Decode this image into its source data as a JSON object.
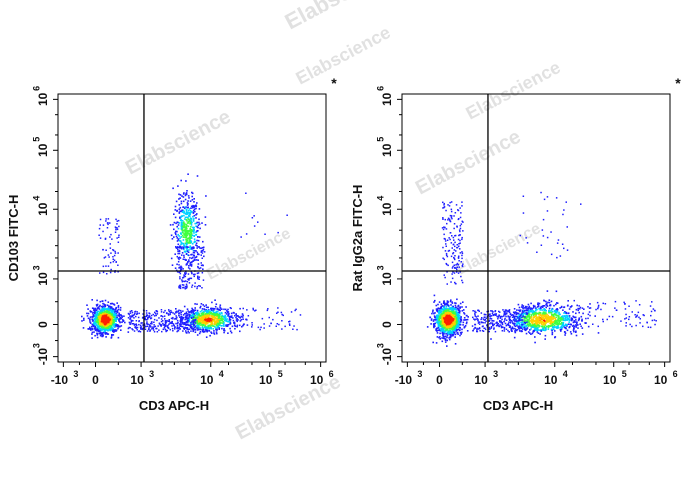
{
  "watermark": "Elabscience",
  "colors": {
    "axis": "#000000",
    "gate": "#000000",
    "density_low": "#1f1fff",
    "density_mid": "#00d0ff",
    "density_mid2": "#40ff40",
    "density_high": "#ffd000",
    "density_peak": "#ff2000"
  },
  "chart_data": [
    {
      "type": "scatter",
      "subtype": "flow-cytometry-density-dot-plot",
      "panel": "left",
      "marker": "*",
      "xlabel": "CD3 APC-H",
      "ylabel": "CD103 FITC-H",
      "xscale": "biexponential",
      "yscale": "biexponential",
      "xlim": [
        -1000,
        1000000
      ],
      "ylim": [
        -1000,
        1000000
      ],
      "x_ticks": [
        {
          "value": -1000,
          "base": "-10",
          "exp": "3"
        },
        {
          "value": 0,
          "base": "0",
          "exp": ""
        },
        {
          "value": 1000,
          "base": "10",
          "exp": "3"
        },
        {
          "value": 10000,
          "base": "10",
          "exp": "4"
        },
        {
          "value": 100000,
          "base": "10",
          "exp": "5"
        },
        {
          "value": 1000000,
          "base": "10",
          "exp": "6"
        }
      ],
      "y_ticks": [
        {
          "value": -1000,
          "base": "-10",
          "exp": "3"
        },
        {
          "value": 0,
          "base": "0",
          "exp": ""
        },
        {
          "value": 1000,
          "base": "10",
          "exp": "3"
        },
        {
          "value": 10000,
          "base": "10",
          "exp": "4"
        },
        {
          "value": 100000,
          "base": "10",
          "exp": "5"
        },
        {
          "value": 1000000,
          "base": "10",
          "exp": "6"
        }
      ],
      "gate_x": 1100,
      "gate_y": 1300,
      "populations": [
        {
          "name": "CD3- CD103-",
          "x": 200,
          "y": 120,
          "relative_density": 1.0
        },
        {
          "name": "CD3+ CD103-",
          "x": 9000,
          "y": 120,
          "relative_density": 0.75
        },
        {
          "name": "CD3+ CD103+",
          "x": 5000,
          "y": 6000,
          "relative_density": 0.3
        }
      ]
    },
    {
      "type": "scatter",
      "subtype": "flow-cytometry-density-dot-plot",
      "panel": "right",
      "marker": "*",
      "xlabel": "CD3 APC-H",
      "ylabel": "Rat IgG2a FITC-H",
      "xscale": "biexponential",
      "yscale": "biexponential",
      "xlim": [
        -1000,
        1000000
      ],
      "ylim": [
        -1000,
        1000000
      ],
      "x_ticks": [
        {
          "value": -1000,
          "base": "-10",
          "exp": "3"
        },
        {
          "value": 0,
          "base": "0",
          "exp": ""
        },
        {
          "value": 1000,
          "base": "10",
          "exp": "3"
        },
        {
          "value": 10000,
          "base": "10",
          "exp": "4"
        },
        {
          "value": 100000,
          "base": "10",
          "exp": "5"
        },
        {
          "value": 1000000,
          "base": "10",
          "exp": "6"
        }
      ],
      "y_ticks": [
        {
          "value": -1000,
          "base": "-10",
          "exp": "3"
        },
        {
          "value": 0,
          "base": "0",
          "exp": ""
        },
        {
          "value": 1000,
          "base": "10",
          "exp": "3"
        },
        {
          "value": 10000,
          "base": "10",
          "exp": "4"
        },
        {
          "value": 100000,
          "base": "10",
          "exp": "5"
        },
        {
          "value": 1000000,
          "base": "10",
          "exp": "6"
        }
      ],
      "gate_x": 1100,
      "gate_y": 1300,
      "populations": [
        {
          "name": "CD3- IgG2a-",
          "x": 200,
          "y": 120,
          "relative_density": 1.0
        },
        {
          "name": "CD3+ IgG2a-",
          "x": 6000,
          "y": 120,
          "relative_density": 0.8
        },
        {
          "name": "CD3- IgG2a+ (sparse)",
          "x": 150,
          "y": 3000,
          "relative_density": 0.1
        }
      ]
    }
  ]
}
